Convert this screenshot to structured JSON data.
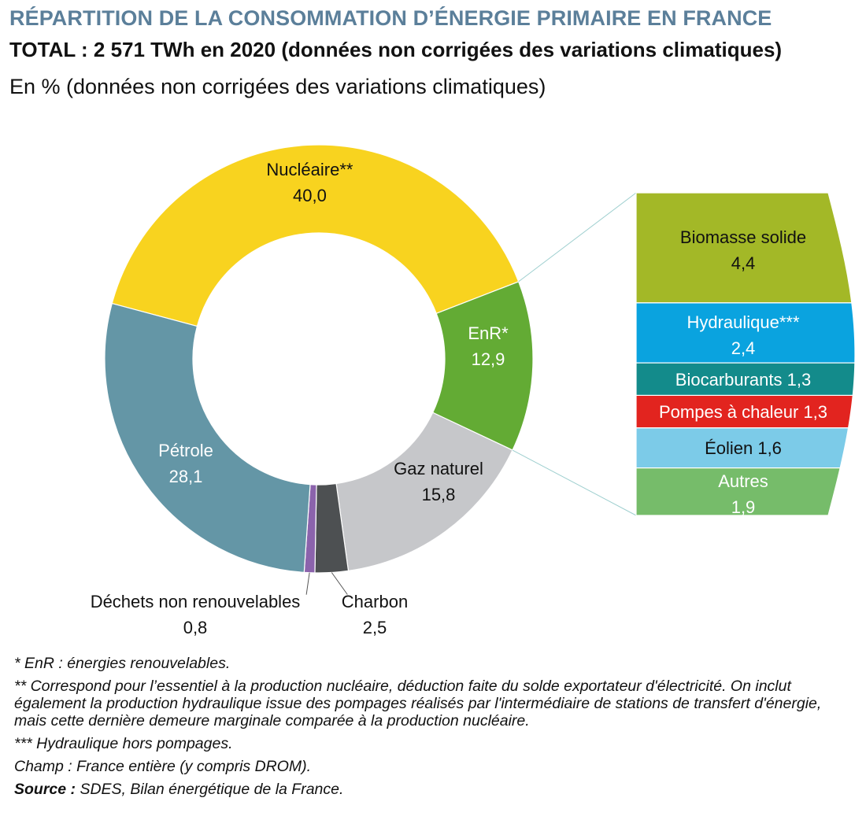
{
  "title": "RÉPARTITION DE LA CONSOMMATION D’ÉNERGIE PRIMAIRE EN FRANCE",
  "subtitle": "TOTAL : 2 571 TWh en 2020 (données non corrigées des variations climatiques)",
  "unit_label": "En % (données non corrigées des variations climatiques)",
  "chart_data": [
    {
      "type": "pie",
      "variant": "donut",
      "unit": "%",
      "slices": [
        {
          "name": "Nucléaire**",
          "label": "Nucléaire**",
          "value": 40.0,
          "value_label": "40,0",
          "color": "#f8d31f",
          "text_color": "#111111"
        },
        {
          "name": "EnR*",
          "label": "EnR*",
          "value": 12.9,
          "value_label": "12,9",
          "color": "#63ab34",
          "text_color": "#ffffff"
        },
        {
          "name": "Gaz naturel",
          "label": "Gaz naturel",
          "value": 15.8,
          "value_label": "15,8",
          "color": "#c6c7ca",
          "text_color": "#111111"
        },
        {
          "name": "Charbon",
          "label": "Charbon",
          "value": 2.5,
          "value_label": "2,5",
          "color": "#4d5052",
          "text_color": "#111111"
        },
        {
          "name": "Déchets non renouvelables",
          "label": "Déchets non renouvelables",
          "value": 0.8,
          "value_label": "0,8",
          "color": "#8b63ac",
          "text_color": "#111111"
        },
        {
          "name": "Pétrole",
          "label": "Pétrole",
          "value": 28.1,
          "value_label": "28,1",
          "color": "#6496a6",
          "text_color": "#ffffff"
        }
      ]
    },
    {
      "type": "bar",
      "variant": "stacked-breakdown",
      "parent": "EnR*",
      "unit": "%",
      "segments": [
        {
          "name": "Biomasse solide",
          "value": 4.4,
          "value_label": "4,4",
          "color": "#a3b827",
          "text_color": "#111111"
        },
        {
          "name": "Hydraulique***",
          "value": 2.4,
          "value_label": "2,4",
          "color": "#0aa3df",
          "text_color": "#ffffff"
        },
        {
          "name": "Biocarburants",
          "value": 1.3,
          "value_label": "1,3",
          "color": "#138b8b",
          "text_color": "#ffffff"
        },
        {
          "name": "Pompes à chaleur",
          "value": 1.3,
          "value_label": "1,3",
          "color": "#e2241f",
          "text_color": "#ffffff"
        },
        {
          "name": "Éolien",
          "value": 1.6,
          "value_label": "1,6",
          "color": "#7ccbe8",
          "text_color": "#111111"
        },
        {
          "name": "Autres",
          "value": 1.9,
          "value_label": "1,9",
          "color": "#76bc6a",
          "text_color": "#ffffff"
        }
      ]
    }
  ],
  "notes": {
    "n1": "* EnR : énergies renouvelables.",
    "n2": "** Correspond pour l’essentiel à la production nucléaire, déduction faite du solde exportateur d'électricité. On inclut également la production hydraulique issue des pompages réalisés par l'intermédiaire de stations de transfert d'énergie, mais cette dernière demeure marginale comparée à la production nucléaire.",
    "n3": "*** Hydraulique hors pompages.",
    "n4": "Champ : France entière (y compris DROM).",
    "source_label": "Source :",
    "source_text": " SDES, Bilan énergétique de la France."
  }
}
